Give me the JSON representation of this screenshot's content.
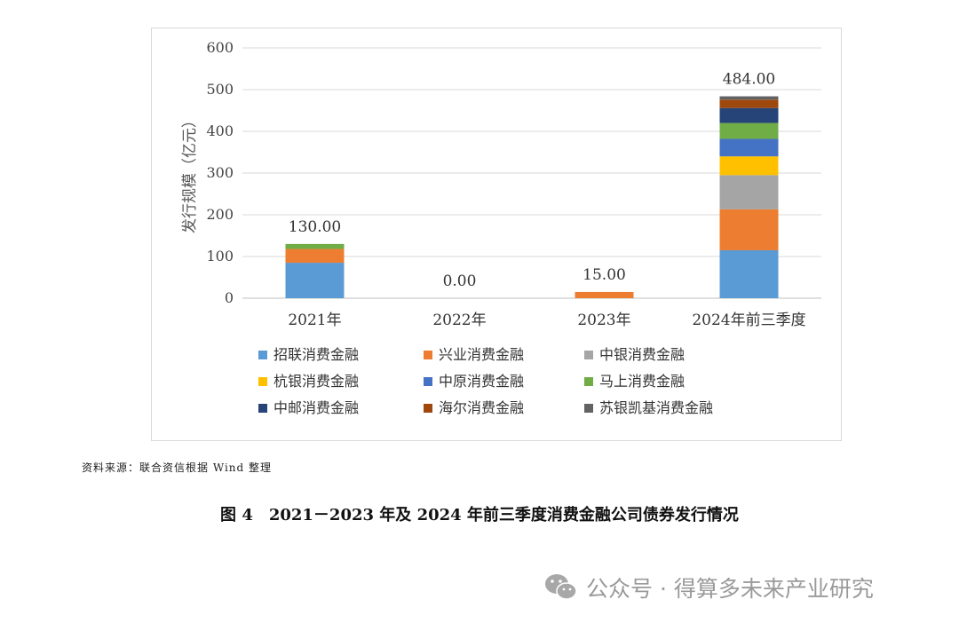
{
  "chart_data": {
    "type": "bar",
    "stacked": true,
    "categories": [
      "2021年",
      "2022年",
      "2023年",
      "2024年前三季度"
    ],
    "ylabel": "发行规模（亿元）",
    "ylim": [
      0,
      600
    ],
    "yticks": [
      0,
      100,
      200,
      300,
      400,
      500,
      600
    ],
    "ytick_labels": [
      "0",
      "100",
      "200",
      "300",
      "400",
      "500",
      "600"
    ],
    "grid": true,
    "legend_position": "bottom",
    "totals": [
      "130.00",
      "0.00",
      "15.00",
      "484.00"
    ],
    "series": [
      {
        "name": "招联消费金融",
        "color": "#5b9bd5",
        "values": [
          85,
          0,
          0,
          115
        ]
      },
      {
        "name": "兴业消费金融",
        "color": "#ed7d31",
        "values": [
          33,
          0,
          15,
          98
        ]
      },
      {
        "name": "中银消费金融",
        "color": "#a5a5a5",
        "values": [
          0,
          0,
          0,
          82
        ]
      },
      {
        "name": "杭银消费金融",
        "color": "#ffc000",
        "values": [
          0,
          0,
          0,
          45
        ]
      },
      {
        "name": "中原消费金融",
        "color": "#4472c4",
        "values": [
          0,
          0,
          0,
          42
        ]
      },
      {
        "name": "马上消费金融",
        "color": "#70ad47",
        "values": [
          12,
          0,
          0,
          38
        ]
      },
      {
        "name": "中邮消费金融",
        "color": "#264478",
        "values": [
          0,
          0,
          0,
          36
        ]
      },
      {
        "name": "海尔消费金融",
        "color": "#9e480e",
        "values": [
          0,
          0,
          0,
          20
        ]
      },
      {
        "name": "苏银凯基消费金融",
        "color": "#636363",
        "values": [
          0,
          0,
          0,
          8
        ]
      }
    ]
  },
  "source_note": "资料来源：联合资信根据 Wind 整理",
  "caption": "图 4　2021－2023 年及 2024 年前三季度消费金融公司债券发行情况",
  "watermark": {
    "icon": "wechat-icon",
    "text": "公众号 · 得算多未来产业研究"
  }
}
